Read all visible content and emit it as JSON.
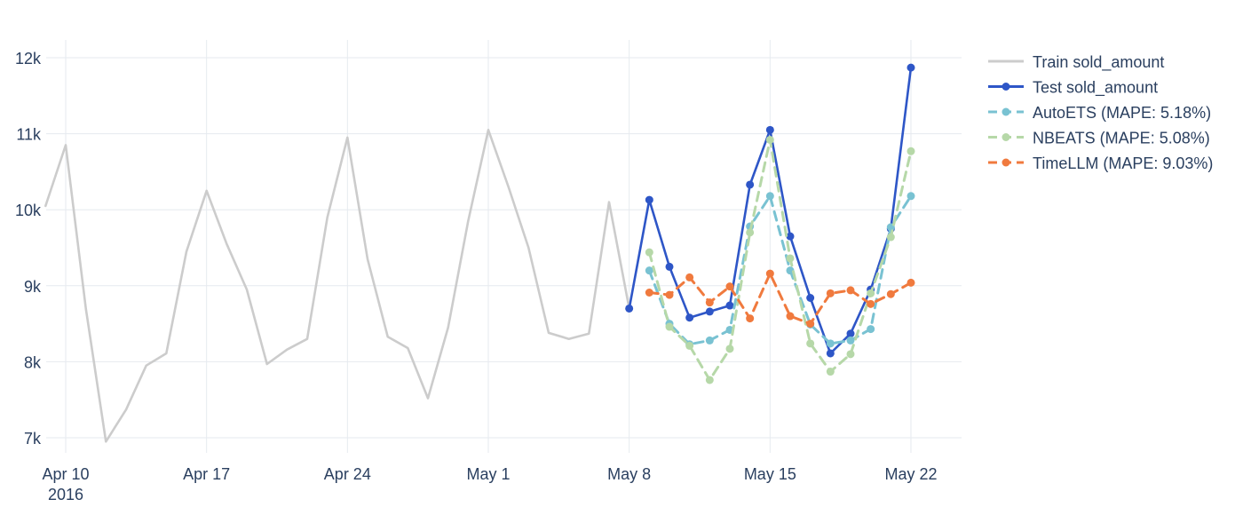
{
  "chart_data": {
    "type": "line",
    "title": "",
    "xlabel": "",
    "ylabel": "",
    "x_range": [
      "2016-04-09",
      "2016-05-23"
    ],
    "ylim": [
      6500,
      12500
    ],
    "grid": true,
    "legend_position": "top-right",
    "x_ticks": [
      {
        "date": "2016-04-10",
        "label": "Apr 10",
        "sublabel": "2016"
      },
      {
        "date": "2016-04-17",
        "label": "Apr 17",
        "sublabel": ""
      },
      {
        "date": "2016-04-24",
        "label": "Apr 24",
        "sublabel": ""
      },
      {
        "date": "2016-05-01",
        "label": "May 1",
        "sublabel": ""
      },
      {
        "date": "2016-05-08",
        "label": "May 8",
        "sublabel": ""
      },
      {
        "date": "2016-05-15",
        "label": "May 15",
        "sublabel": ""
      },
      {
        "date": "2016-05-22",
        "label": "May 22",
        "sublabel": ""
      }
    ],
    "y_ticks": [
      {
        "value": 7000,
        "label": "7k"
      },
      {
        "value": 8000,
        "label": "8k"
      },
      {
        "value": 9000,
        "label": "9k"
      },
      {
        "value": 10000,
        "label": "10k"
      },
      {
        "value": 11000,
        "label": "11k"
      },
      {
        "value": 12000,
        "label": "12k"
      }
    ],
    "series": [
      {
        "name": "Train sold_amount",
        "color": "#cccccc",
        "dash": false,
        "markers": false,
        "start_date": "2016-04-09",
        "values": [
          10050,
          10850,
          8700,
          6950,
          7370,
          7950,
          8110,
          9450,
          10250,
          9550,
          8950,
          7970,
          8160,
          8300,
          9900,
          10950,
          9350,
          8330,
          8180,
          7520,
          8450,
          9850,
          11050,
          10300,
          9500,
          8380,
          8300,
          8370,
          10100,
          8700
        ]
      },
      {
        "name": "Test sold_amount",
        "color": "#2e56c7",
        "dash": false,
        "markers": true,
        "start_date": "2016-05-08",
        "values": [
          8700,
          10130,
          9250,
          8580,
          8660,
          8740,
          10330,
          11050,
          9650,
          8840,
          8110,
          8370,
          8950,
          9750,
          11870
        ]
      },
      {
        "name": "AutoETS (MAPE: 5.18%)",
        "color": "#79c2d2",
        "dash": true,
        "markers": true,
        "start_date": "2016-05-09",
        "values": [
          9200,
          8500,
          8230,
          8280,
          8420,
          9780,
          10180,
          9200,
          8490,
          8240,
          8280,
          8430,
          9770,
          10180
        ]
      },
      {
        "name": "NBEATS (MAPE: 5.08%)",
        "color": "#b6d8a8",
        "dash": true,
        "markers": true,
        "start_date": "2016-05-09",
        "values": [
          9440,
          8460,
          8210,
          7760,
          8170,
          9700,
          10920,
          9360,
          8240,
          7870,
          8100,
          8900,
          9640,
          10770
        ]
      },
      {
        "name": "TimeLLM (MAPE: 9.03%)",
        "color": "#f07a3e",
        "dash": true,
        "markers": true,
        "start_date": "2016-05-09",
        "values": [
          8910,
          8880,
          9110,
          8780,
          8990,
          8570,
          9160,
          8600,
          8500,
          8900,
          8940,
          8760,
          8890,
          9040
        ]
      }
    ]
  }
}
